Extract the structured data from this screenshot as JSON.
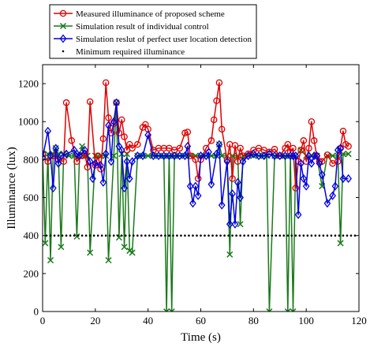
{
  "chart_data": {
    "type": "line",
    "xlabel": "Time (s)",
    "ylabel": "Illuminance (lux)",
    "xlim": [
      0,
      120
    ],
    "ylim": [
      0,
      1300
    ],
    "xticks": [
      0,
      20,
      40,
      60,
      80,
      100,
      120
    ],
    "yticks": [
      0,
      200,
      400,
      600,
      800,
      1000,
      1200
    ],
    "grid": false,
    "legend_position": "top-left, outside above plot",
    "series": [
      {
        "name": "Measured illuminance of proposed scheme",
        "color": "#e00000",
        "marker": "circle",
        "x": [
          0,
          2,
          4,
          6,
          8,
          9,
          11,
          13,
          15,
          16,
          17,
          18,
          20,
          21,
          22,
          23,
          24,
          25,
          26,
          27,
          28,
          29,
          30,
          31,
          32,
          33,
          34,
          36,
          38,
          39,
          40,
          42,
          44,
          46,
          48,
          50,
          52,
          54,
          55,
          56,
          58,
          59,
          60,
          62,
          64,
          65,
          66,
          67,
          68,
          70,
          71,
          72,
          73,
          74,
          75,
          76,
          78,
          80,
          82,
          84,
          86,
          88,
          90,
          92,
          93,
          94,
          95,
          96,
          97,
          98,
          99,
          100,
          101,
          102,
          103,
          104,
          105,
          106,
          108,
          110,
          112,
          113,
          114,
          115,
          116
        ],
        "y": [
          830,
          790,
          820,
          800,
          790,
          1100,
          900,
          790,
          820,
          830,
          760,
          1105,
          770,
          820,
          750,
          910,
          1205,
          1020,
          940,
          990,
          1100,
          940,
          1010,
          920,
          850,
          880,
          860,
          880,
          970,
          985,
          960,
          850,
          860,
          860,
          860,
          850,
          860,
          940,
          945,
          820,
          800,
          700,
          800,
          860,
          900,
          1010,
          1110,
          1205,
          960,
          800,
          880,
          700,
          875,
          790,
          860,
          820,
          830,
          850,
          860,
          850,
          840,
          855,
          820,
          860,
          880,
          840,
          860,
          650,
          790,
          850,
          900,
          790,
          860,
          1000,
          900,
          820,
          790,
          790,
          825,
          780,
          790,
          860,
          950,
          880,
          870
        ]
      },
      {
        "name": "Simulation result of individual control",
        "color": "#1a7a1a",
        "marker": "x",
        "x": [
          0,
          1,
          2,
          3,
          4,
          5,
          6,
          7,
          8,
          10,
          12,
          13,
          14,
          15,
          16,
          17,
          18,
          20,
          22,
          24,
          25,
          27,
          28,
          29,
          30,
          31,
          32,
          33,
          34,
          36,
          38,
          40,
          42,
          44,
          46,
          47,
          48,
          49,
          50,
          52,
          54,
          56,
          58,
          60,
          62,
          64,
          66,
          67,
          68,
          70,
          71,
          72,
          74,
          75,
          76,
          78,
          80,
          82,
          84,
          85,
          86,
          88,
          90,
          92,
          93,
          94,
          95,
          96,
          98,
          100,
          102,
          104,
          106,
          108,
          110,
          112,
          113,
          114,
          116
        ],
        "y": [
          830,
          360,
          830,
          270,
          830,
          860,
          830,
          340,
          830,
          820,
          820,
          395,
          820,
          870,
          820,
          820,
          310,
          820,
          820,
          820,
          270,
          820,
          1100,
          390,
          830,
          340,
          830,
          320,
          310,
          820,
          820,
          820,
          820,
          820,
          820,
          0,
          820,
          0,
          820,
          820,
          820,
          820,
          820,
          820,
          820,
          820,
          820,
          880,
          820,
          820,
          300,
          820,
          820,
          460,
          820,
          820,
          820,
          820,
          820,
          820,
          0,
          820,
          820,
          820,
          0,
          820,
          0,
          820,
          850,
          820,
          820,
          820,
          660,
          820,
          820,
          820,
          360,
          830,
          830
        ]
      },
      {
        "name": "Simulation reslut of perfect user location detection",
        "color": "#0000e0",
        "marker": "diamond",
        "x": [
          0,
          2,
          3,
          4,
          5,
          6,
          7,
          9,
          12,
          13,
          14,
          16,
          18,
          19,
          20,
          22,
          23,
          24,
          25,
          26,
          27,
          28,
          29,
          30,
          31,
          32,
          33,
          34,
          36,
          38,
          40,
          42,
          44,
          46,
          48,
          50,
          52,
          54,
          55,
          56,
          57,
          58,
          59,
          60,
          62,
          63,
          64,
          66,
          67,
          68,
          70,
          71,
          72,
          73,
          74,
          75,
          76,
          78,
          80,
          82,
          84,
          86,
          88,
          90,
          92,
          94,
          95,
          96,
          97,
          98,
          99,
          100,
          101,
          102,
          103,
          104,
          105,
          106,
          108,
          110,
          111,
          112,
          113,
          114,
          116
        ],
        "y": [
          810,
          950,
          820,
          650,
          860,
          780,
          820,
          830,
          850,
          830,
          820,
          850,
          790,
          700,
          780,
          770,
          680,
          830,
          980,
          790,
          1000,
          1100,
          870,
          850,
          650,
          790,
          700,
          790,
          820,
          820,
          930,
          820,
          820,
          820,
          820,
          820,
          820,
          820,
          870,
          660,
          570,
          660,
          610,
          820,
          820,
          840,
          670,
          830,
          880,
          560,
          790,
          460,
          620,
          460,
          680,
          600,
          790,
          820,
          830,
          820,
          820,
          830,
          820,
          820,
          820,
          820,
          820,
          820,
          510,
          780,
          700,
          660,
          820,
          780,
          820,
          820,
          780,
          720,
          570,
          610,
          660,
          850,
          860,
          700,
          700
        ]
      },
      {
        "name": "Minimum required illuminance",
        "color": "#000000",
        "marker": "dot",
        "x": [
          0,
          120
        ],
        "y": [
          400,
          400
        ]
      }
    ]
  }
}
